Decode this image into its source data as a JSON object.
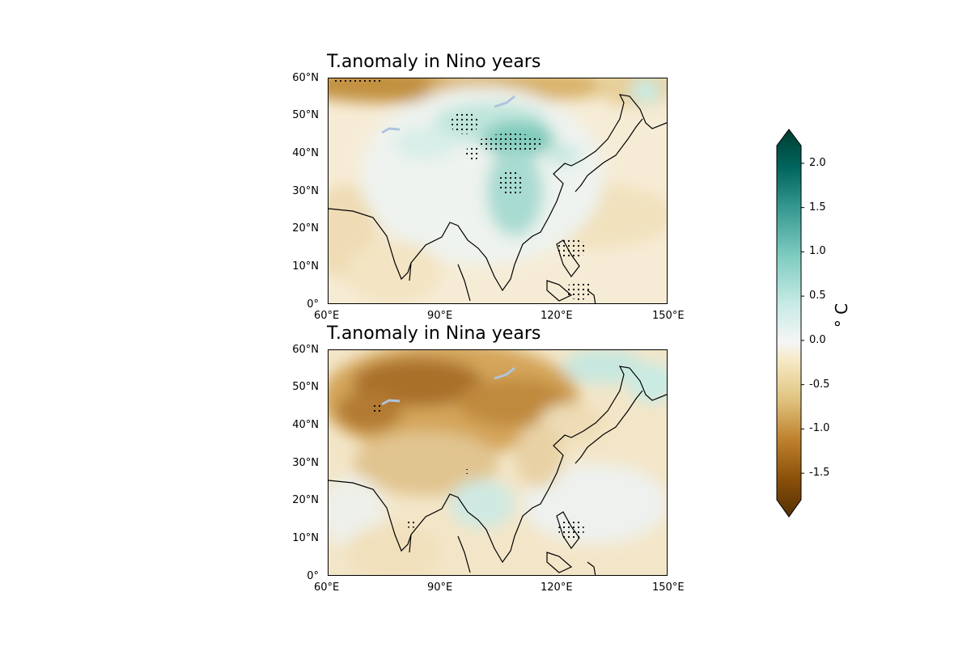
{
  "panels": [
    {
      "title": "T.anomaly in Nino years",
      "lat_ticks": [
        "60°N",
        "50°N",
        "40°N",
        "30°N",
        "20°N",
        "10°N",
        "0°"
      ],
      "lon_ticks": [
        "60°E",
        "90°E",
        "120°E",
        "150°E"
      ]
    },
    {
      "title": "T.anomaly in Nina years",
      "lat_ticks": [
        "60°N",
        "50°N",
        "40°N",
        "30°N",
        "20°N",
        "10°N",
        "0°"
      ],
      "lon_ticks": [
        "60°E",
        "90°E",
        "120°E",
        "150°E"
      ]
    }
  ],
  "colorbar": {
    "unit": "° C",
    "ticks": [
      "2.0",
      "1.5",
      "1.0",
      "0.5",
      "0.0",
      "-0.5",
      "-1.0",
      "-1.5"
    ],
    "tick_values": [
      2.0,
      1.5,
      1.0,
      0.5,
      0.0,
      -0.5,
      -1.0,
      -1.5
    ],
    "range": [
      -1.8,
      2.2
    ],
    "colors": [
      "#543005",
      "#8c510a",
      "#bf812d",
      "#dfc27d",
      "#f6e8c3",
      "#f5f5f5",
      "#c7eae5",
      "#80cdc1",
      "#35978f",
      "#01665e",
      "#003c30"
    ]
  },
  "map_extent": {
    "lon": [
      60,
      150
    ],
    "lat": [
      0,
      60
    ]
  }
}
